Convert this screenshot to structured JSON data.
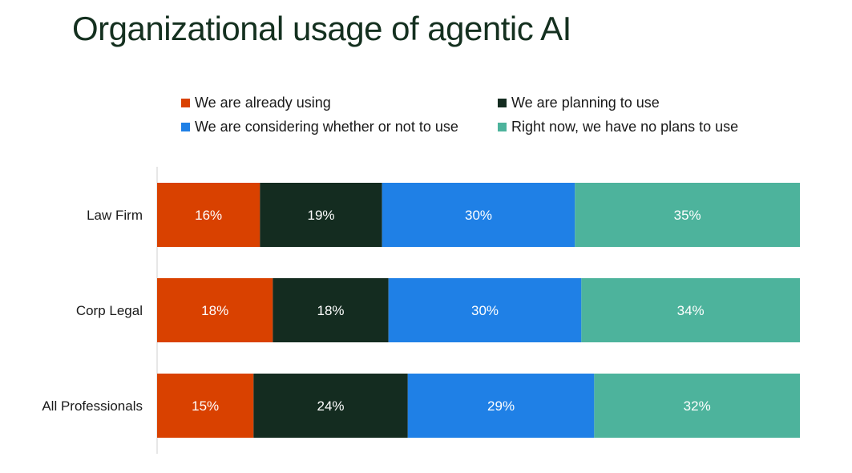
{
  "chart_data": {
    "type": "bar",
    "orientation": "horizontal",
    "stacked": true,
    "title": "Organizational usage of agentic AI",
    "categories": [
      "Law Firm",
      "Corp Legal",
      "All Professionals"
    ],
    "series": [
      {
        "name": "We are already using",
        "values": [
          16,
          18,
          15
        ],
        "color": "#d94100"
      },
      {
        "name": "We are planning to use",
        "values": [
          19,
          18,
          24
        ],
        "color": "#142c20"
      },
      {
        "name": "We are considering whether or not to use",
        "values": [
          30,
          30,
          29
        ],
        "color": "#1f80e6"
      },
      {
        "name": "Right now, we have no plans to use",
        "values": [
          35,
          34,
          32
        ],
        "color": "#4db39c"
      }
    ],
    "value_suffix": "%",
    "xlim": [
      0,
      100
    ],
    "grid": false,
    "legend_position": "top"
  }
}
